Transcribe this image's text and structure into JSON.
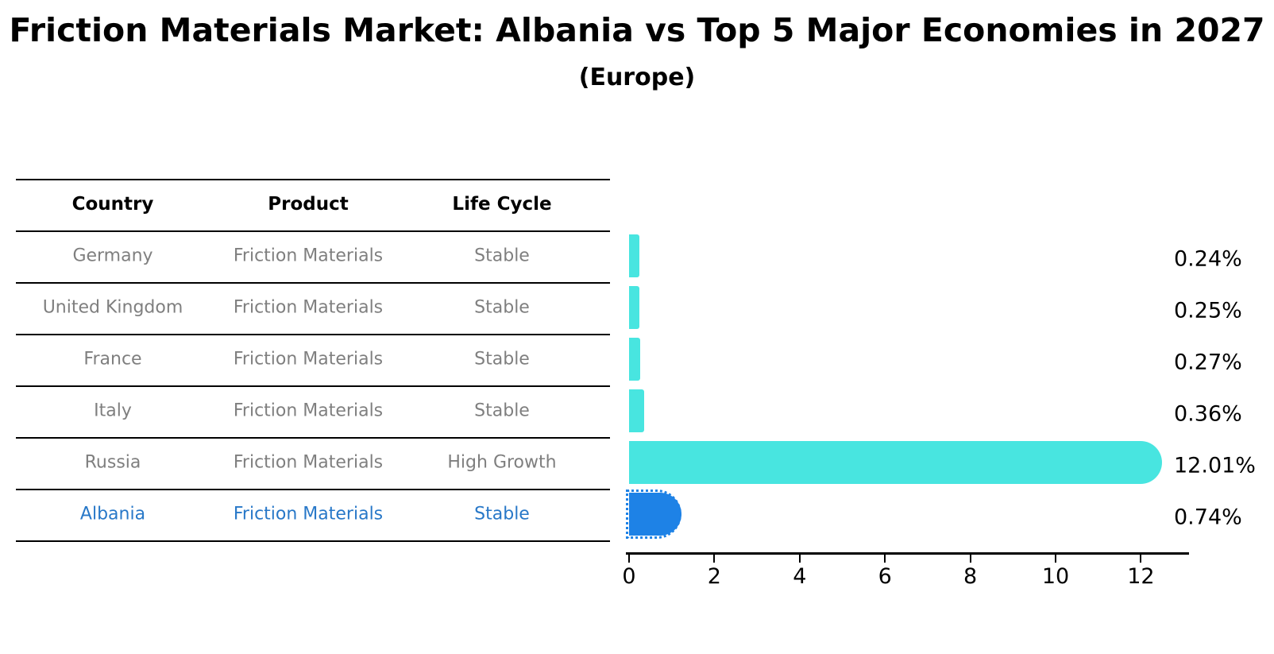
{
  "title": "Friction Materials Market: Albania vs Top 5 Major Economies in 2027",
  "subtitle": "(Europe)",
  "table": {
    "headers": [
      "Country",
      "Product",
      "Life Cycle"
    ],
    "rows": [
      {
        "country": "Germany",
        "product": "Friction Materials",
        "life_cycle": "Stable",
        "value_label": "0.24%",
        "highlight": false
      },
      {
        "country": "United Kingdom",
        "product": "Friction Materials",
        "life_cycle": "Stable",
        "value_label": "0.25%",
        "highlight": false
      },
      {
        "country": "France",
        "product": "Friction Materials",
        "life_cycle": "Stable",
        "value_label": "0.27%",
        "highlight": false
      },
      {
        "country": "Italy",
        "product": "Friction Materials",
        "life_cycle": "Stable",
        "value_label": "0.36%",
        "highlight": false
      },
      {
        "country": "Russia",
        "product": "Friction Materials",
        "life_cycle": "High Growth",
        "value_label": "12.01%",
        "highlight": false
      },
      {
        "country": "Albania",
        "product": "Friction Materials",
        "life_cycle": "Stable",
        "value_label": "0.74%",
        "highlight": true
      }
    ]
  },
  "chart_data": {
    "type": "bar",
    "orientation": "horizontal",
    "title": "Friction Materials Market: Albania vs Top 5 Major Economies in 2027",
    "subtitle": "(Europe)",
    "categories": [
      "Germany",
      "United Kingdom",
      "France",
      "Italy",
      "Russia",
      "Albania"
    ],
    "values": [
      0.24,
      0.25,
      0.27,
      0.36,
      12.01,
      0.74
    ],
    "value_labels": [
      "0.24%",
      "0.25%",
      "0.27%",
      "0.36%",
      "12.01%",
      "0.74%"
    ],
    "xlabel": "",
    "ylabel": "",
    "xlim": [
      0,
      13.2
    ],
    "xticks": [
      0,
      2,
      4,
      6,
      8,
      10,
      12
    ],
    "grid": false,
    "legend": "none",
    "value_label_position": "right-of-plot",
    "highlight_index": 5,
    "highlight_style": "dotted-edge"
  },
  "colors": {
    "bar": "#48e5e0",
    "highlight_bar": "#1e82e6",
    "highlight_text": "#2878c8",
    "row_text": "#7f7f7f",
    "header_text": "#000000",
    "line": "#000000",
    "value_text": "#000000",
    "background": "#ffffff"
  }
}
